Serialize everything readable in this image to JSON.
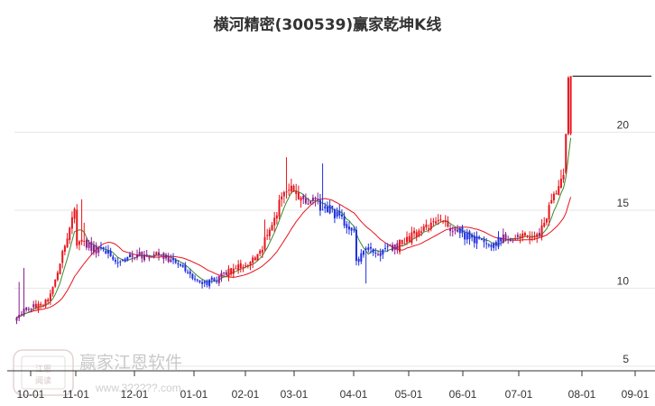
{
  "chart_data": {
    "type": "candlestick",
    "title": "横河精密(300539)赢家乾坤K线",
    "x_tick_labels": [
      "10-01",
      "11-01",
      "12-01",
      "01-01",
      "02-01",
      "03-01",
      "04-01",
      "05-01",
      "06-01",
      "07-01",
      "08-01",
      "09-01"
    ],
    "y_tick_labels": [
      "5",
      "10",
      "15",
      "20"
    ],
    "y_ticks": [
      5,
      10,
      15,
      20
    ],
    "ylim": [
      4.7,
      25.3
    ],
    "grid": "horizontal",
    "segments": [
      {
        "months": "10-01",
        "days": [
          0,
          12
        ],
        "start": 8.3,
        "end": 9.1
      },
      {
        "months": "11-01",
        "days": [
          13,
          24
        ],
        "start": 9.1,
        "end": 14.8
      },
      {
        "months": "11-01",
        "days": [
          25,
          42
        ],
        "start": 13.0,
        "end": 11.9
      },
      {
        "months": "12-01",
        "days": [
          43,
          60
        ],
        "start": 11.9,
        "end": 12.3
      },
      {
        "months": "01-01",
        "days": [
          61,
          79
        ],
        "start": 12.1,
        "end": 10.2
      },
      {
        "months": "02-01",
        "days": [
          80,
          100
        ],
        "start": 10.4,
        "end": 12.0
      },
      {
        "months": "02-01",
        "days": [
          101,
          111
        ],
        "start": 12.2,
        "end": 16.2
      },
      {
        "months": "03-01",
        "days": [
          112,
          130
        ],
        "start": 16.4,
        "end": 15.0
      },
      {
        "months": "04-01",
        "days": [
          131,
          140
        ],
        "start": 14.9,
        "end": 13.6
      },
      {
        "months": "04-01",
        "days": [
          141,
          143
        ],
        "start": 11.5,
        "end": 12.0
      },
      {
        "months": "04-01",
        "days": [
          144,
          158
        ],
        "start": 12.3,
        "end": 12.6
      },
      {
        "months": "05-01",
        "days": [
          159,
          176
        ],
        "start": 12.9,
        "end": 14.2
      },
      {
        "months": "06-01",
        "days": [
          177,
          199
        ],
        "start": 14.0,
        "end": 12.6
      },
      {
        "months": "07-01",
        "days": [
          200,
          216
        ],
        "start": 13.1,
        "end": 13.4
      },
      {
        "months": "07-01",
        "days": [
          217,
          227
        ],
        "start": 13.6,
        "end": 17.4
      },
      {
        "months": "08-01",
        "days": [
          228,
          230
        ],
        "start": 19.0,
        "end": 23.6
      }
    ],
    "series_colors": {
      "up": "#e8141c",
      "down": "#1f2ee0",
      "neutral": "#8a1e8c",
      "ma_short": "#3a8a2c",
      "ma_long": "#e8141c",
      "resistance": "#000000"
    }
  },
  "watermark": {
    "brand_text": "赢家江恩软件",
    "site_text": "www.3?????.com",
    "seal_text": [
      "江恩",
      "阅读"
    ]
  }
}
